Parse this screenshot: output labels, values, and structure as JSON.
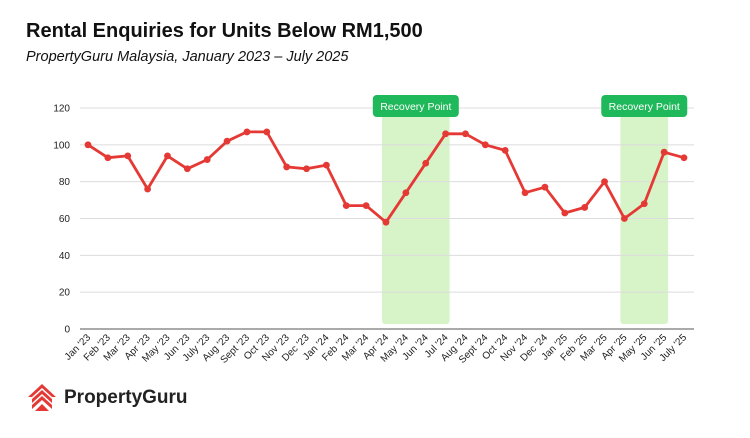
{
  "header": {
    "title": "Rental Enquiries for Units Below RM1,500",
    "subtitle": "PropertyGuru Malaysia, January 2023 – July 2025"
  },
  "brand": {
    "name": "PropertyGuru",
    "logo_icon": "propertyguru-house-logo-icon",
    "accent_color": "#e53935"
  },
  "chart_data": {
    "type": "line",
    "title": "Rental Enquiries for Units Below RM1,500",
    "subtitle": "PropertyGuru Malaysia, January 2023 – July 2025",
    "xlabel": "",
    "ylabel": "",
    "ylim": [
      0,
      120
    ],
    "yticks": [
      0,
      20,
      40,
      60,
      80,
      100,
      120
    ],
    "grid": true,
    "line_color": "#e53935",
    "highlight_color": "#d7f3c8",
    "badge_color": "#1fb85a",
    "categories": [
      "Jan '23",
      "Feb '23",
      "Mar '23",
      "Apr '23",
      "May '23",
      "Jun '23",
      "July '23",
      "Aug '23",
      "Sept '23",
      "Oct '23",
      "Nov '23",
      "Dec '23",
      "Jan '24",
      "Feb '24",
      "Mar '24",
      "Apr '24",
      "May '24",
      "Jun '24",
      "Jul '24",
      "Aug '24",
      "Sept '24",
      "Oct '24",
      "Nov '24",
      "Dec '24",
      "Jan '25",
      "Feb '25",
      "Mar '25",
      "Apr '25",
      "May '25",
      "Jun '25",
      "July '25"
    ],
    "series": [
      {
        "values": [
          100,
          93,
          94,
          76,
          94,
          87,
          92,
          102,
          107,
          107,
          88,
          87,
          89,
          67,
          67,
          58,
          74,
          90,
          106,
          106,
          100,
          97,
          74,
          77,
          63,
          66,
          80,
          60,
          68,
          96,
          93
        ]
      }
    ],
    "highlights": [
      {
        "label": "Recovery Point",
        "from": "Apr '24",
        "to": "Jul '24"
      },
      {
        "label": "Recovery Point",
        "from": "Apr '25",
        "to": "Jun '25"
      }
    ]
  }
}
